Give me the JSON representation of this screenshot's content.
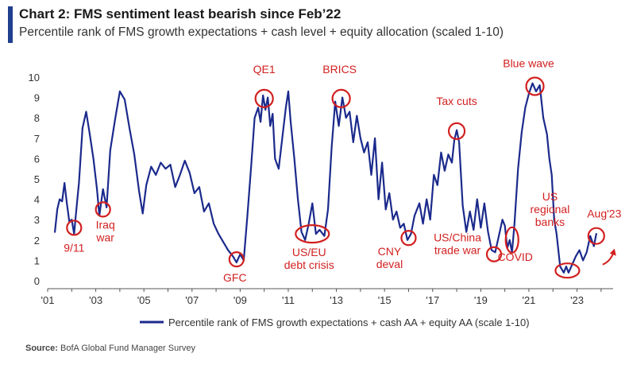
{
  "title": "Chart 2: FMS sentiment least bearish since Feb’22",
  "subtitle": "Percentile rank of FMS growth expectations + cash level + equity allocation (scaled 1-10)",
  "source_label": "Source:",
  "source_text": "BofA Global Fund Manager Survey",
  "colors": {
    "line": "#1b2a8c",
    "annotation": "#d21f1f",
    "accent": "#1f3f8f"
  },
  "chart_data": {
    "type": "line",
    "xlabel": "",
    "ylabel": "",
    "ylim": [
      0,
      10
    ],
    "xlim": [
      2001.0,
      2024.5
    ],
    "y_ticks": [
      "0",
      "1",
      "2",
      "3",
      "4",
      "5",
      "6",
      "7",
      "8",
      "9",
      "10"
    ],
    "x_ticks": [
      {
        "label": "'01",
        "value": 2001
      },
      {
        "label": "'03",
        "value": 2003
      },
      {
        "label": "'05",
        "value": 2005
      },
      {
        "label": "'07",
        "value": 2007
      },
      {
        "label": "'09",
        "value": 2009
      },
      {
        "label": "'11",
        "value": 2011
      },
      {
        "label": "'13",
        "value": 2013
      },
      {
        "label": "'15",
        "value": 2015
      },
      {
        "label": "'17",
        "value": 2017
      },
      {
        "label": "'19",
        "value": 2019
      },
      {
        "label": "'21",
        "value": 2021
      },
      {
        "label": "'23",
        "value": 2023
      }
    ],
    "grid": false,
    "legend_position": "bottom",
    "series": [
      {
        "name": "Percentile rank of FMS growth expectations + cash AA + equity AA (scale 1-10)",
        "points": [
          [
            2001.3,
            2.4
          ],
          [
            2001.4,
            3.5
          ],
          [
            2001.5,
            4.0
          ],
          [
            2001.6,
            3.9
          ],
          [
            2001.7,
            4.8
          ],
          [
            2001.8,
            3.8
          ],
          [
            2001.9,
            2.9
          ],
          [
            2002.0,
            3.0
          ],
          [
            2002.1,
            2.3
          ],
          [
            2002.2,
            3.6
          ],
          [
            2002.3,
            4.8
          ],
          [
            2002.45,
            7.5
          ],
          [
            2002.6,
            8.3
          ],
          [
            2002.75,
            7.2
          ],
          [
            2002.9,
            6.0
          ],
          [
            2003.05,
            4.5
          ],
          [
            2003.15,
            3.2
          ],
          [
            2003.3,
            4.5
          ],
          [
            2003.45,
            3.6
          ],
          [
            2003.6,
            6.4
          ],
          [
            2003.8,
            7.9
          ],
          [
            2004.0,
            9.3
          ],
          [
            2004.2,
            8.9
          ],
          [
            2004.4,
            7.5
          ],
          [
            2004.6,
            6.2
          ],
          [
            2004.8,
            4.4
          ],
          [
            2004.95,
            3.3
          ],
          [
            2005.1,
            4.7
          ],
          [
            2005.3,
            5.6
          ],
          [
            2005.5,
            5.2
          ],
          [
            2005.7,
            5.8
          ],
          [
            2005.9,
            5.5
          ],
          [
            2006.1,
            5.7
          ],
          [
            2006.3,
            4.6
          ],
          [
            2006.5,
            5.2
          ],
          [
            2006.7,
            5.9
          ],
          [
            2006.9,
            5.3
          ],
          [
            2007.1,
            4.3
          ],
          [
            2007.3,
            4.6
          ],
          [
            2007.5,
            3.4
          ],
          [
            2007.7,
            3.8
          ],
          [
            2007.9,
            2.8
          ],
          [
            2008.1,
            2.3
          ],
          [
            2008.3,
            1.9
          ],
          [
            2008.5,
            1.5
          ],
          [
            2008.7,
            1.2
          ],
          [
            2008.85,
            0.9
          ],
          [
            2009.0,
            1.3
          ],
          [
            2009.15,
            1.0
          ],
          [
            2009.3,
            3.2
          ],
          [
            2009.45,
            5.5
          ],
          [
            2009.6,
            8.0
          ],
          [
            2009.75,
            8.5
          ],
          [
            2009.85,
            7.8
          ],
          [
            2009.95,
            9.1
          ],
          [
            2010.05,
            8.4
          ],
          [
            2010.15,
            9.0
          ],
          [
            2010.25,
            7.6
          ],
          [
            2010.35,
            8.2
          ],
          [
            2010.45,
            6.0
          ],
          [
            2010.6,
            5.5
          ],
          [
            2010.75,
            7.0
          ],
          [
            2010.9,
            8.5
          ],
          [
            2011.0,
            9.3
          ],
          [
            2011.1,
            7.8
          ],
          [
            2011.25,
            6.0
          ],
          [
            2011.4,
            4.0
          ],
          [
            2011.55,
            2.4
          ],
          [
            2011.7,
            2.0
          ],
          [
            2011.85,
            2.8
          ],
          [
            2012.0,
            3.8
          ],
          [
            2012.15,
            2.3
          ],
          [
            2012.3,
            2.5
          ],
          [
            2012.5,
            2.2
          ],
          [
            2012.65,
            3.5
          ],
          [
            2012.8,
            6.5
          ],
          [
            2012.95,
            8.8
          ],
          [
            2013.1,
            7.6
          ],
          [
            2013.25,
            9.0
          ],
          [
            2013.4,
            8.0
          ],
          [
            2013.55,
            8.3
          ],
          [
            2013.7,
            6.8
          ],
          [
            2013.85,
            8.1
          ],
          [
            2014.0,
            7.0
          ],
          [
            2014.15,
            6.3
          ],
          [
            2014.3,
            6.8
          ],
          [
            2014.45,
            5.2
          ],
          [
            2014.6,
            7.0
          ],
          [
            2014.75,
            4.0
          ],
          [
            2014.9,
            5.8
          ],
          [
            2015.05,
            3.5
          ],
          [
            2015.2,
            4.3
          ],
          [
            2015.35,
            3.0
          ],
          [
            2015.5,
            3.4
          ],
          [
            2015.65,
            2.6
          ],
          [
            2015.8,
            2.8
          ],
          [
            2015.95,
            2.0
          ],
          [
            2016.1,
            2.3
          ],
          [
            2016.25,
            3.2
          ],
          [
            2016.45,
            3.8
          ],
          [
            2016.6,
            2.8
          ],
          [
            2016.75,
            4.0
          ],
          [
            2016.9,
            3.0
          ],
          [
            2017.05,
            5.2
          ],
          [
            2017.2,
            4.7
          ],
          [
            2017.35,
            6.3
          ],
          [
            2017.5,
            5.4
          ],
          [
            2017.65,
            6.2
          ],
          [
            2017.8,
            5.8
          ],
          [
            2017.9,
            6.9
          ],
          [
            2018.0,
            7.4
          ],
          [
            2018.1,
            6.8
          ],
          [
            2018.25,
            3.7
          ],
          [
            2018.4,
            2.4
          ],
          [
            2018.55,
            3.4
          ],
          [
            2018.7,
            2.5
          ],
          [
            2018.85,
            4.0
          ],
          [
            2019.0,
            2.6
          ],
          [
            2019.15,
            3.8
          ],
          [
            2019.3,
            2.4
          ],
          [
            2019.45,
            1.5
          ],
          [
            2019.6,
            1.4
          ],
          [
            2019.75,
            2.2
          ],
          [
            2019.9,
            3.0
          ],
          [
            2020.0,
            2.7
          ],
          [
            2020.1,
            1.6
          ],
          [
            2020.2,
            2.0
          ],
          [
            2020.3,
            1.4
          ],
          [
            2020.4,
            2.8
          ],
          [
            2020.55,
            5.5
          ],
          [
            2020.7,
            7.3
          ],
          [
            2020.85,
            8.5
          ],
          [
            2021.0,
            9.2
          ],
          [
            2021.15,
            9.7
          ],
          [
            2021.3,
            9.3
          ],
          [
            2021.45,
            9.6
          ],
          [
            2021.6,
            8.0
          ],
          [
            2021.75,
            7.2
          ],
          [
            2021.85,
            6.0
          ],
          [
            2021.95,
            5.2
          ],
          [
            2022.05,
            3.0
          ],
          [
            2022.15,
            2.3
          ],
          [
            2022.3,
            0.7
          ],
          [
            2022.45,
            0.4
          ],
          [
            2022.55,
            0.7
          ],
          [
            2022.65,
            0.4
          ],
          [
            2022.8,
            0.8
          ],
          [
            2022.95,
            1.2
          ],
          [
            2023.1,
            1.5
          ],
          [
            2023.25,
            1.0
          ],
          [
            2023.4,
            1.4
          ],
          [
            2023.55,
            2.2
          ],
          [
            2023.7,
            1.7
          ],
          [
            2023.8,
            2.3
          ]
        ]
      }
    ],
    "annotations": [
      {
        "label": "9/11",
        "lines": [
          "9/11"
        ],
        "x": 2002.1,
        "y": 2.6
      },
      {
        "label": "Iraq war",
        "lines": [
          "Iraq",
          "war"
        ],
        "x": 2003.3,
        "y": 3.5
      },
      {
        "label": "GFC",
        "lines": [
          "GFC"
        ],
        "x": 2008.85,
        "y": 1.05
      },
      {
        "label": "QE1",
        "lines": [
          "QE1"
        ],
        "x": 2010.0,
        "y": 8.95
      },
      {
        "label": "US/EU debt crisis",
        "lines": [
          "US/EU",
          "debt crisis"
        ],
        "x": 2012.0,
        "y": 2.3
      },
      {
        "label": "BRICS",
        "lines": [
          "BRICS"
        ],
        "x": 2013.2,
        "y": 8.95
      },
      {
        "label": "CNY deval",
        "lines": [
          "CNY",
          "deval"
        ],
        "x": 2016.0,
        "y": 2.1
      },
      {
        "label": "Tax cuts",
        "lines": [
          "Tax cuts"
        ],
        "x": 2018.0,
        "y": 7.35
      },
      {
        "label": "US/China trade war",
        "lines": [
          "US/China",
          "trade war"
        ],
        "x": 2019.55,
        "y": 1.3
      },
      {
        "label": "COVID",
        "lines": [
          "COVID"
        ],
        "x": 2020.3,
        "y": 2.0
      },
      {
        "label": "Blue wave",
        "lines": [
          "Blue wave"
        ],
        "x": 2021.25,
        "y": 9.55
      },
      {
        "label": "US regional banks",
        "lines": [
          "US",
          "regional",
          "banks"
        ],
        "x": 2022.6,
        "y": 0.5
      },
      {
        "label": "Aug'23",
        "lines": [
          "Aug'23"
        ],
        "x": 2023.8,
        "y": 2.2
      }
    ]
  }
}
